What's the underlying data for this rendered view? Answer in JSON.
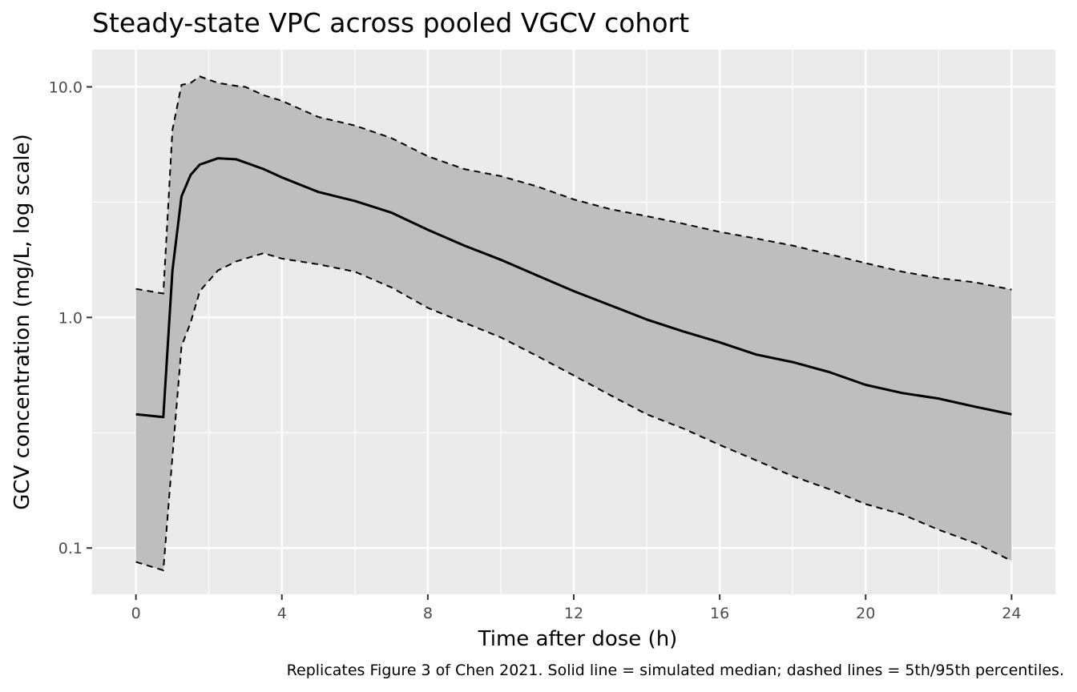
{
  "chart_data": {
    "type": "area",
    "title": "Steady-state VPC across pooled VGCV cohort",
    "xlabel": "Time after dose (h)",
    "ylabel": "GCV concentration (mg/L, log scale)",
    "caption": "Replicates Figure 3 of Chen 2021. Solid line = simulated median; dashed lines = 5th/95th percentiles.",
    "xlim": [
      -1.2,
      25.2
    ],
    "ylim": [
      0.063,
      14.5
    ],
    "y_scale": "log10",
    "grid": true,
    "x_ticks": [
      0,
      4,
      8,
      12,
      16,
      20,
      24
    ],
    "x_tick_labels": [
      "0",
      "4",
      "8",
      "12",
      "16",
      "20",
      "24"
    ],
    "y_ticks": [
      0.1,
      1.0,
      10.0
    ],
    "y_tick_labels": [
      "0.1",
      "1.0",
      "10.0"
    ],
    "colors": {
      "band": "#bebebe",
      "panel": "#ebebeb",
      "line": "#000000"
    },
    "x": [
      0,
      0.75,
      1.0,
      1.25,
      1.5,
      1.75,
      2.25,
      2.75,
      3.0,
      3.5,
      4.0,
      5.0,
      6.0,
      7.0,
      8.0,
      9.0,
      10.0,
      11.0,
      12.0,
      13.0,
      14.0,
      15.0,
      16.0,
      17.0,
      18.0,
      19.0,
      20.0,
      21.0,
      22.0,
      23.0,
      24.0
    ],
    "series": [
      {
        "name": "",
        "role": "p95",
        "style": "dashed",
        "values": [
          1.33,
          1.27,
          6.5,
          10.2,
          10.4,
          11.1,
          10.4,
          10.1,
          10.0,
          9.2,
          8.7,
          7.4,
          6.8,
          6.0,
          5.0,
          4.4,
          4.1,
          3.7,
          3.25,
          2.95,
          2.75,
          2.55,
          2.35,
          2.2,
          2.05,
          1.88,
          1.72,
          1.58,
          1.48,
          1.42,
          1.32
        ]
      },
      {
        "name": "",
        "role": "median",
        "style": "solid",
        "values": [
          0.38,
          0.37,
          1.6,
          3.35,
          4.15,
          4.6,
          4.9,
          4.85,
          4.7,
          4.4,
          4.05,
          3.5,
          3.2,
          2.85,
          2.4,
          2.05,
          1.78,
          1.52,
          1.3,
          1.13,
          0.98,
          0.87,
          0.78,
          0.69,
          0.64,
          0.58,
          0.51,
          0.47,
          0.445,
          0.41,
          0.38
        ]
      },
      {
        "name": "",
        "role": "p05",
        "style": "dashed",
        "values": [
          0.087,
          0.08,
          0.25,
          0.75,
          0.95,
          1.3,
          1.6,
          1.75,
          1.8,
          1.9,
          1.8,
          1.7,
          1.58,
          1.35,
          1.1,
          0.95,
          0.82,
          0.68,
          0.56,
          0.46,
          0.38,
          0.33,
          0.28,
          0.24,
          0.205,
          0.18,
          0.155,
          0.14,
          0.12,
          0.105,
          0.088
        ]
      }
    ]
  }
}
